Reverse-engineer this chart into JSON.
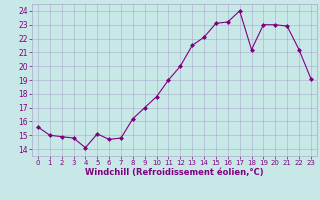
{
  "hours": [
    0,
    1,
    2,
    3,
    4,
    5,
    6,
    7,
    8,
    9,
    10,
    11,
    12,
    13,
    14,
    15,
    16,
    17,
    18,
    19,
    20,
    21,
    22,
    23
  ],
  "values": [
    15.6,
    15.0,
    14.9,
    14.8,
    14.1,
    15.1,
    14.7,
    14.8,
    16.2,
    17.0,
    17.8,
    19.0,
    20.0,
    21.5,
    22.1,
    23.1,
    23.2,
    24.0,
    21.2,
    23.0,
    23.0,
    22.9,
    21.2,
    19.1
  ],
  "line_color": "#800080",
  "marker": "D",
  "marker_size": 2.0,
  "bg_color": "#c8e8e8",
  "grid_color": "#aaaacc",
  "xlabel": "Windchill (Refroidissement éolien,°C)",
  "xlabel_color": "#800080",
  "tick_color": "#800080",
  "ylim": [
    13.5,
    24.5
  ],
  "xlim": [
    -0.5,
    23.5
  ],
  "yticks": [
    14,
    15,
    16,
    17,
    18,
    19,
    20,
    21,
    22,
    23,
    24
  ],
  "xtick_labels": [
    "0",
    "1",
    "2",
    "3",
    "4",
    "5",
    "6",
    "7",
    "8",
    "9",
    "10",
    "11",
    "12",
    "13",
    "14",
    "15",
    "16",
    "17",
    "18",
    "19",
    "20",
    "21",
    "22",
    "23"
  ]
}
